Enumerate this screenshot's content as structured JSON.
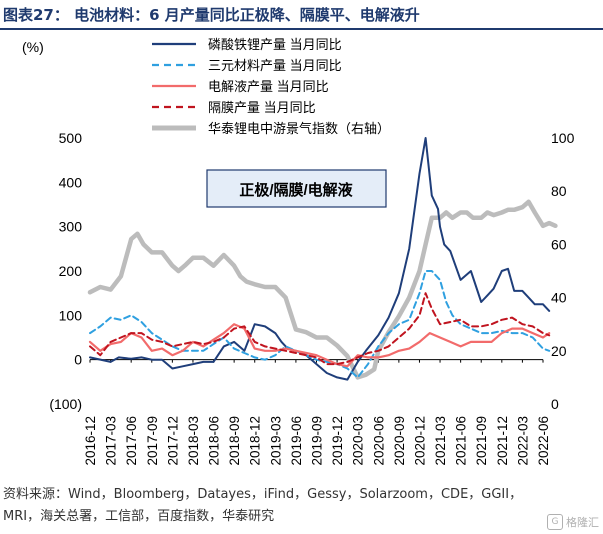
{
  "page": {
    "title": "图表27：   电池材料：6 月产量同比正极降、隔膜平、电解液升",
    "source": "资料来源：Wind，Bloomberg，Datayes，iFind，Gessy，Solarzoom，CDE，GGII，MRI，海关总署，工信部，百度指数，华泰研究",
    "watermark": "格隆汇"
  },
  "chart_data": {
    "type": "line",
    "ylabel_left": "(%)",
    "ylim_left": [
      -100,
      500
    ],
    "yticks_left": [
      "(100)",
      "0",
      "100",
      "200",
      "300",
      "400",
      "500"
    ],
    "ylim_right": [
      0,
      100
    ],
    "yticks_right": [
      "0",
      "20",
      "40",
      "60",
      "80",
      "100"
    ],
    "x_ticks": [
      "2016-12",
      "2017-03",
      "2017-06",
      "2017-09",
      "2017-12",
      "2018-03",
      "2018-06",
      "2018-09",
      "2018-12",
      "2019-03",
      "2019-06",
      "2019-09",
      "2019-12",
      "2020-03",
      "2020-06",
      "2020-09",
      "2020-12",
      "2021-03",
      "2021-06",
      "2021-09",
      "2021-12",
      "2022-03",
      "2022-06"
    ],
    "annotation": "正极/隔膜/电解液",
    "legend_position": "top-right",
    "grid": false,
    "series": [
      {
        "name": "磷酸铁锂产量 当月同比",
        "axis": "left",
        "color": "#1f3e7a",
        "dash": "solid",
        "width": 2,
        "x": [
          0,
          1,
          1.4,
          2,
          2.5,
          3,
          3.5,
          4,
          4.5,
          5,
          5.5,
          6,
          6.5,
          7,
          7.5,
          8,
          8.5,
          9,
          9.3,
          9.6,
          10,
          10.5,
          11,
          11.5,
          12,
          12.5,
          13,
          13.4,
          14,
          14.5,
          15,
          15.5,
          16,
          16.3,
          16.6,
          16.9,
          17,
          17.2,
          17.5,
          18,
          18.5,
          19,
          19.3,
          19.6,
          20,
          20.3,
          20.6,
          21,
          21.3,
          21.6,
          22,
          22.3
        ],
        "y": [
          5,
          -5,
          5,
          2,
          5,
          0,
          0,
          -20,
          -15,
          -10,
          -5,
          -5,
          30,
          40,
          20,
          80,
          75,
          60,
          40,
          25,
          20,
          10,
          -10,
          -30,
          -40,
          -45,
          -5,
          20,
          55,
          95,
          150,
          250,
          420,
          500,
          370,
          340,
          300,
          260,
          245,
          180,
          200,
          130,
          145,
          160,
          200,
          205,
          155,
          155,
          140,
          125,
          125,
          110
        ]
      },
      {
        "name": "三元材料产量 当月同比",
        "axis": "left",
        "color": "#2fa0e0",
        "dash": "6,4",
        "width": 2,
        "x": [
          0,
          0.5,
          1,
          1.5,
          2,
          2.5,
          3,
          3.5,
          4,
          4.5,
          5,
          5.5,
          6,
          6.5,
          7,
          7.5,
          8,
          8.5,
          9,
          9.5,
          10,
          10.5,
          11,
          11.5,
          12,
          12.5,
          13,
          13.5,
          14,
          14.5,
          15,
          15.5,
          16,
          16.3,
          16.6,
          17,
          17.3,
          17.6,
          18,
          18.5,
          19,
          19.5,
          20,
          20.5,
          21,
          21.5,
          22,
          22.3
        ],
        "y": [
          60,
          75,
          95,
          90,
          100,
          85,
          60,
          45,
          30,
          20,
          20,
          20,
          35,
          50,
          25,
          15,
          5,
          0,
          10,
          30,
          20,
          10,
          0,
          -5,
          -10,
          -20,
          -40,
          -10,
          30,
          60,
          80,
          90,
          150,
          200,
          200,
          180,
          130,
          100,
          80,
          70,
          60,
          60,
          65,
          60,
          60,
          50,
          25,
          20
        ]
      },
      {
        "name": "电解液产量 当月同比",
        "axis": "left",
        "color": "#f26b6b",
        "dash": "solid",
        "width": 2.2,
        "x": [
          0,
          0.5,
          1,
          1.5,
          2,
          2.5,
          3,
          3.5,
          4,
          4.5,
          5,
          5.5,
          6,
          6.5,
          7,
          7.5,
          8,
          8.5,
          9,
          9.5,
          10,
          10.5,
          11,
          11.5,
          12,
          12.5,
          13,
          13.5,
          14,
          14.5,
          15,
          15.5,
          16,
          16.5,
          17,
          17.5,
          18,
          18.5,
          19,
          19.5,
          20,
          20.5,
          21,
          21.5,
          22,
          22.3
        ],
        "y": [
          40,
          20,
          35,
          40,
          60,
          50,
          20,
          25,
          10,
          20,
          40,
          30,
          45,
          60,
          80,
          70,
          25,
          20,
          20,
          25,
          20,
          15,
          10,
          0,
          -10,
          -15,
          10,
          5,
          5,
          10,
          20,
          25,
          40,
          60,
          50,
          40,
          30,
          40,
          40,
          40,
          60,
          70,
          70,
          60,
          50,
          60
        ]
      },
      {
        "name": "隔膜产量 当月同比",
        "axis": "left",
        "color": "#c0141f",
        "dash": "6,4",
        "width": 2,
        "x": [
          0,
          0.5,
          1,
          1.5,
          2,
          2.5,
          3,
          3.5,
          4,
          4.5,
          5,
          5.5,
          6,
          6.5,
          7,
          7.5,
          8,
          8.5,
          9,
          9.5,
          10,
          10.5,
          11,
          11.5,
          12,
          12.5,
          13,
          13.5,
          14,
          14.5,
          15,
          15.5,
          16,
          16.3,
          16.6,
          17,
          17.5,
          18,
          18.5,
          19,
          19.5,
          20,
          20.5,
          21,
          21.5,
          22,
          22.3
        ],
        "y": [
          30,
          10,
          40,
          50,
          60,
          60,
          45,
          40,
          30,
          35,
          40,
          35,
          40,
          50,
          70,
          75,
          40,
          30,
          25,
          20,
          15,
          10,
          5,
          -10,
          -10,
          -5,
          5,
          15,
          20,
          30,
          50,
          70,
          100,
          150,
          115,
          80,
          85,
          90,
          75,
          75,
          80,
          90,
          95,
          80,
          75,
          60,
          55
        ]
      },
      {
        "name": "华泰锂电中游景气指数（右轴）",
        "axis": "right",
        "color": "#bcbcbc",
        "dash": "solid",
        "width": 4.5,
        "x": [
          0,
          0.5,
          1,
          1.5,
          2,
          2.3,
          2.6,
          3,
          3.5,
          4,
          4.3,
          4.6,
          5,
          5.5,
          6,
          6.5,
          7,
          7.3,
          7.6,
          8,
          8.5,
          9,
          9.5,
          10,
          10.5,
          11,
          11.5,
          12,
          12.5,
          13,
          13.4,
          13.8,
          14,
          14.5,
          15,
          15.5,
          16,
          16.3,
          16.6,
          17,
          17.3,
          17.6,
          18,
          18.3,
          18.6,
          19,
          19.3,
          19.6,
          20,
          20.3,
          20.6,
          21,
          21.3,
          21.6,
          22,
          22.3,
          22.6
        ],
        "y": [
          42,
          44,
          43,
          48,
          62,
          64,
          60,
          57,
          57,
          52,
          50,
          52,
          55,
          55,
          52,
          56,
          52,
          48,
          46,
          45,
          44,
          44,
          40,
          28,
          27,
          25,
          25,
          22,
          18,
          10,
          11,
          13,
          20,
          27,
          33,
          40,
          50,
          60,
          70,
          70,
          72,
          70,
          72,
          72,
          70,
          70,
          72,
          71,
          72,
          73,
          73,
          74,
          76,
          72,
          67,
          68,
          67
        ]
      }
    ]
  }
}
